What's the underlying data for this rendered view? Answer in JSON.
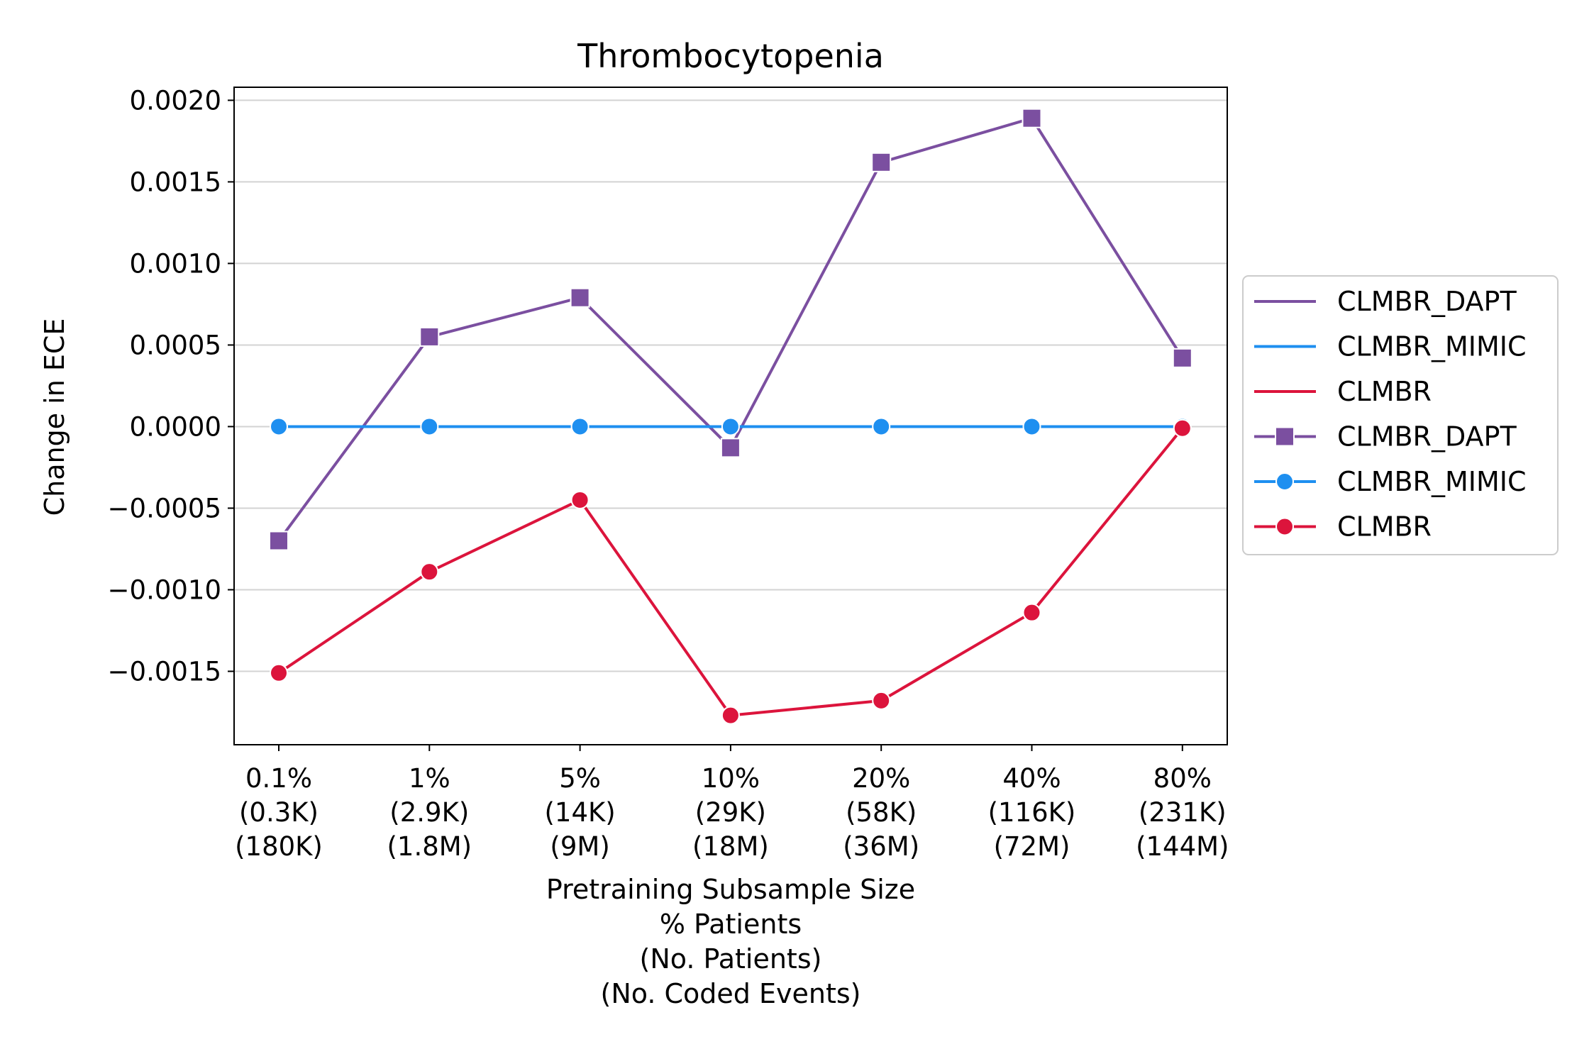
{
  "chart_data": {
    "type": "line",
    "title": "Thrombocytopenia",
    "ylabel": "Change in ECE",
    "xlabel_lines": [
      "Pretraining Subsample Size",
      "% Patients",
      "(No. Patients)",
      "(No. Coded Events)"
    ],
    "categories": [
      [
        "0.1%",
        "(0.3K)",
        "(180K)"
      ],
      [
        "1%",
        "(2.9K)",
        "(1.8M)"
      ],
      [
        "5%",
        "(14K)",
        "(9M)"
      ],
      [
        "10%",
        "(29K)",
        "(18M)"
      ],
      [
        "20%",
        "(58K)",
        "(36M)"
      ],
      [
        "40%",
        "(116K)",
        "(72M)"
      ],
      [
        "80%",
        "(231K)",
        "(144M)"
      ]
    ],
    "ylim": [
      -0.00195,
      0.00208
    ],
    "yticks": [
      -0.0015,
      -0.001,
      -0.0005,
      0.0,
      0.0005,
      0.001,
      0.0015,
      0.002
    ],
    "ytick_labels": [
      "−0.0015",
      "−0.0010",
      "−0.0005",
      "0.0000",
      "0.0005",
      "0.0010",
      "0.0015",
      "0.0020"
    ],
    "grid": "horizontal",
    "legend_position": "outside-right",
    "series": [
      {
        "name": "CLMBR_DAPT",
        "color": "#7b4fa0",
        "marker": "square",
        "values": [
          -0.0007,
          0.00055,
          0.00079,
          -0.00013,
          0.00162,
          0.00189,
          0.00042
        ]
      },
      {
        "name": "CLMBR_MIMIC",
        "color": "#1e8ff0",
        "marker": "circle",
        "values": [
          0.0,
          0.0,
          0.0,
          0.0,
          0.0,
          0.0,
          0.0
        ]
      },
      {
        "name": "CLMBR",
        "color": "#dc143c",
        "marker": "circle",
        "values": [
          -0.00151,
          -0.00089,
          -0.00045,
          -0.00177,
          -0.00168,
          -0.00114,
          -1e-05
        ]
      }
    ],
    "legend_entries": [
      {
        "label": "CLMBR_DAPT",
        "color": "#7b4fa0",
        "marker": "none"
      },
      {
        "label": "CLMBR_MIMIC",
        "color": "#1e8ff0",
        "marker": "none"
      },
      {
        "label": "CLMBR",
        "color": "#dc143c",
        "marker": "none"
      },
      {
        "label": "CLMBR_DAPT",
        "color": "#7b4fa0",
        "marker": "square"
      },
      {
        "label": "CLMBR_MIMIC",
        "color": "#1e8ff0",
        "marker": "circle"
      },
      {
        "label": "CLMBR",
        "color": "#dc143c",
        "marker": "circle"
      }
    ]
  }
}
